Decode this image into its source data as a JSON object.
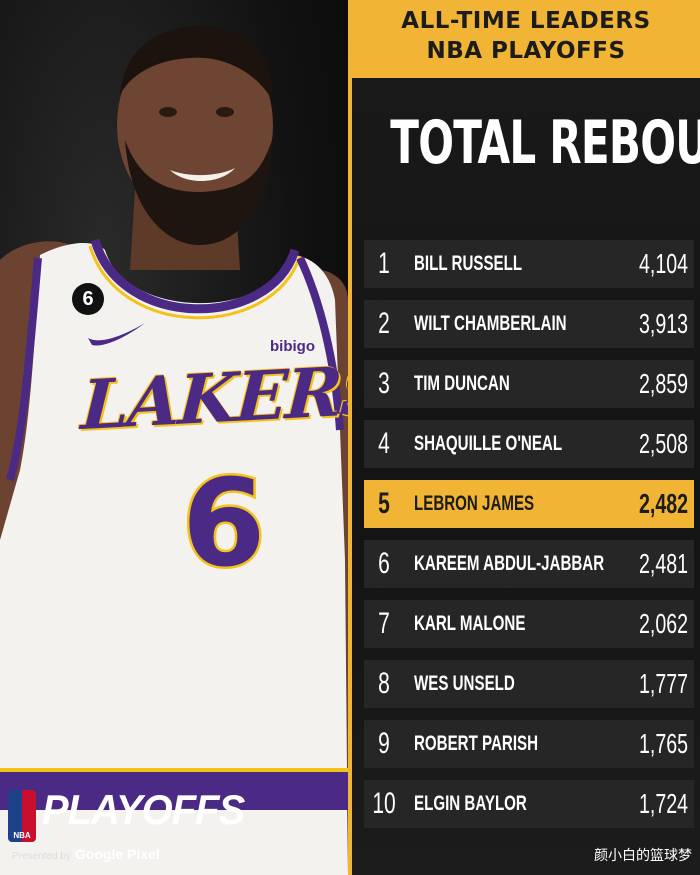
{
  "header": {
    "line1": "ALL-TIME LEADERS",
    "line2": "NBA PLAYOFFS"
  },
  "stat_title": "TOTAL REBOUNDS",
  "leaders": [
    {
      "rank": "1",
      "name": "BILL RUSSELL",
      "value": "4,104",
      "highlight": false
    },
    {
      "rank": "2",
      "name": "WILT CHAMBERLAIN",
      "value": "3,913",
      "highlight": false
    },
    {
      "rank": "3",
      "name": "TIM DUNCAN",
      "value": "2,859",
      "highlight": false
    },
    {
      "rank": "4",
      "name": "SHAQUILLE O'NEAL",
      "value": "2,508",
      "highlight": false
    },
    {
      "rank": "5",
      "name": "LEBRON JAMES",
      "value": "2,482",
      "highlight": true
    },
    {
      "rank": "6",
      "name": "KAREEM ABDUL-JABBAR",
      "value": "2,481",
      "highlight": false
    },
    {
      "rank": "7",
      "name": "KARL MALONE",
      "value": "2,062",
      "highlight": false
    },
    {
      "rank": "8",
      "name": "WES UNSELD",
      "value": "1,777",
      "highlight": false
    },
    {
      "rank": "9",
      "name": "ROBERT PARISH",
      "value": "1,765",
      "highlight": false
    },
    {
      "rank": "10",
      "name": "ELGIN BAYLOR",
      "value": "1,724",
      "highlight": false
    }
  ],
  "photo": {
    "jersey_text": "LAKERS",
    "jersey_number": "6",
    "patch_number": "6",
    "sponsor": "bibigo"
  },
  "brand": {
    "logo_text": "NBA",
    "playoffs": "PLAYOFFS",
    "presented_by": "Presented by",
    "sponsor": "Google Pixel"
  },
  "watermark": "颜小白的篮球梦",
  "colors": {
    "accent_gold": "#f1b434",
    "lakers_purple": "#4b2a86",
    "lakers_gold": "#f5c21a",
    "row_bg": "#282828"
  }
}
